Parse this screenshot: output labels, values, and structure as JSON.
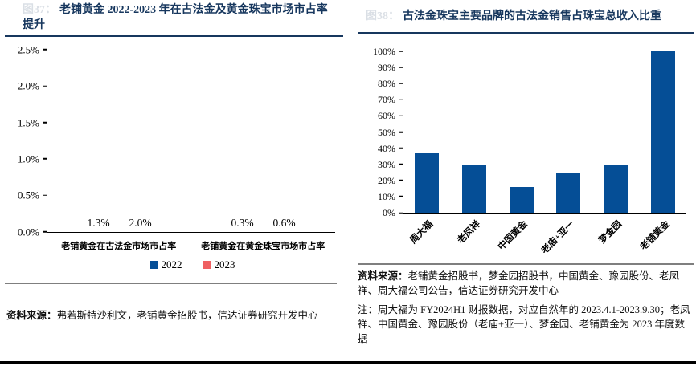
{
  "left_panel": {
    "figure_number": "图37：",
    "title": "老铺黄金 2022-2023 年在古法金及黄金珠宝市场市占率提升",
    "source_label": "资料来源：",
    "source_text": "弗若斯特沙利文，老铺黄金招股书，信达证券研究开发中心"
  },
  "right_panel": {
    "figure_number": "图38：",
    "title": "古法金珠宝主要品牌的古法金销售占珠宝总收入比重",
    "source_label": "资料来源：",
    "source_text": "老铺黄金招股书，梦金园招股书，中国黄金、豫园股份、老凤祥、周大福公司公告，信达证券研究开发中心",
    "note": "注：周大福为 FY2024H1 财报数据，对应自然年的 2023.4.1-2023.9.30；老凤祥、中国黄金、豫园股份（老庙+亚一）、梦金园、老铺黄金为 2023 年度数据"
  },
  "colors": {
    "title_navy": "#17375E",
    "bar_blue": "#054E96",
    "bar_red": "#EF6062",
    "divider_gray": "#7F7F7F",
    "axis_black": "#000000",
    "page_bottom_border": "#000000"
  },
  "chart_data": [
    {
      "type": "bar",
      "title": "老铺黄金 2022-2023 年在古法金及黄金珠宝市场市占率提升",
      "categories": [
        "老铺黄金在古法金市场市占率",
        "老铺黄金在黄金珠宝市场市占率"
      ],
      "series": [
        {
          "name": "2022",
          "color": "#054E96",
          "values": [
            1.3,
            0.3
          ],
          "labels": [
            "1.3%",
            "0.3%"
          ]
        },
        {
          "name": "2023",
          "color": "#EF6062",
          "values": [
            2.0,
            0.6
          ],
          "labels": [
            "2.0%",
            "0.6%"
          ]
        }
      ],
      "ylim": [
        0,
        2.5
      ],
      "ytick_step": 0.5,
      "ytick_labels": [
        "0.0%",
        "0.5%",
        "1.0%",
        "1.5%",
        "2.0%",
        "2.5%"
      ],
      "ylabel": "",
      "xlabel": "",
      "grid": false,
      "legend_position": "bottom",
      "data_labels": true
    },
    {
      "type": "bar",
      "title": "古法金珠宝主要品牌的古法金销售占珠宝总收入比重",
      "categories": [
        "周大福",
        "老凤祥",
        "中国黄金",
        "老庙+亚一",
        "梦金园",
        "老铺黄金"
      ],
      "values": [
        37,
        30,
        16,
        25,
        30,
        100
      ],
      "bar_color": "#054E96",
      "ylim": [
        0,
        100
      ],
      "ytick_step": 10,
      "ytick_labels": [
        "0%",
        "10%",
        "20%",
        "30%",
        "40%",
        "50%",
        "60%",
        "70%",
        "80%",
        "90%",
        "100%"
      ],
      "ylabel": "",
      "xlabel": "",
      "grid": false,
      "legend_position": "none",
      "xtick_rotation": -45,
      "data_labels": false
    }
  ]
}
